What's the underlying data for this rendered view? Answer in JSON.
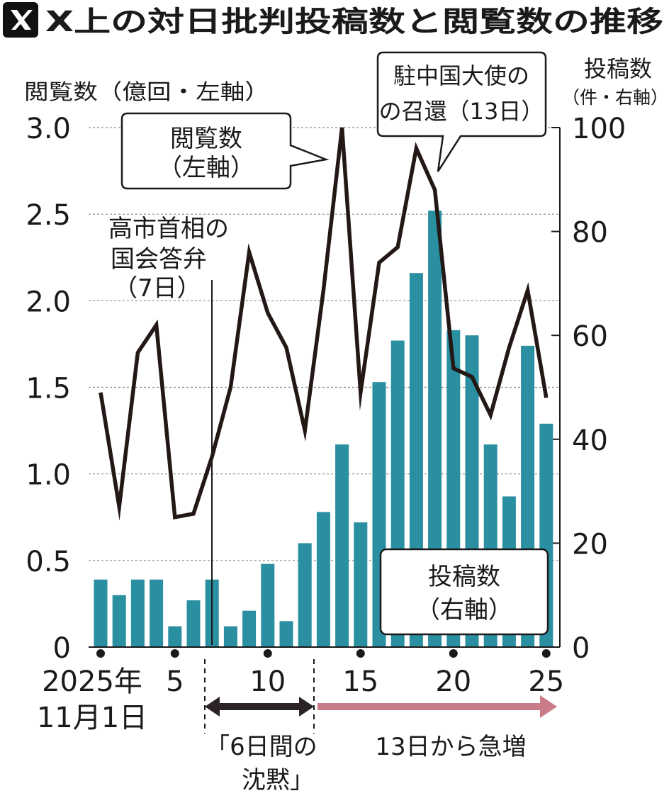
{
  "chart_data": {
    "type": "bar+line",
    "title": "X上の対日批判投稿数と閲覧数の推移",
    "title_icon": "x-logo-icon",
    "x": [
      1,
      2,
      3,
      4,
      5,
      6,
      7,
      8,
      9,
      10,
      11,
      12,
      13,
      14,
      15,
      16,
      17,
      18,
      19,
      20,
      21,
      22,
      23,
      24,
      25
    ],
    "x_tick_labels": [
      {
        "day": 1,
        "lines": [
          "2025年",
          "11月1日"
        ]
      },
      {
        "day": 5,
        "lines": [
          "5"
        ]
      },
      {
        "day": 10,
        "lines": [
          "10"
        ]
      },
      {
        "day": 15,
        "lines": [
          "15"
        ]
      },
      {
        "day": 20,
        "lines": [
          "20"
        ]
      },
      {
        "day": 25,
        "lines": [
          "25"
        ]
      }
    ],
    "left_axis": {
      "label": "閲覧数（億回・左軸）",
      "ylim": [
        0,
        3.0
      ],
      "ticks": [
        "0",
        "0.5",
        "1.0",
        "1.5",
        "2.0",
        "2.5",
        "3.0"
      ]
    },
    "right_axis": {
      "label_lines": [
        "投稿数",
        "（件・右軸）"
      ],
      "ylim": [
        0,
        100
      ],
      "ticks": [
        "0",
        "20",
        "40",
        "60",
        "80",
        "100"
      ]
    },
    "series": [
      {
        "name": "投稿数（右軸）",
        "kind": "bar",
        "axis": "right",
        "color": "#2a8fa0",
        "values": [
          13,
          10,
          13,
          13,
          4,
          9,
          13,
          4,
          7,
          16,
          5,
          20,
          26,
          39,
          24,
          51,
          59,
          72,
          84,
          61,
          60,
          39,
          29,
          58,
          43
        ]
      },
      {
        "name": "閲覧数（左軸）",
        "kind": "line",
        "axis": "left",
        "color": "#231816",
        "values": [
          1.47,
          0.81,
          1.7,
          1.86,
          0.75,
          0.77,
          1.1,
          1.5,
          2.28,
          1.93,
          1.73,
          1.25,
          2.06,
          3.0,
          1.47,
          2.22,
          2.31,
          2.88,
          2.64,
          1.61,
          1.56,
          1.34,
          1.73,
          2.06,
          1.44
        ]
      }
    ],
    "annotations": {
      "line_callout": [
        "閲覧数",
        "（左軸）"
      ],
      "bar_callout": [
        "投稿数",
        "（右軸）"
      ],
      "event_day7": [
        "高市首相の",
        "国会答弁",
        "（7日）"
      ],
      "event_day13": [
        "駐中国大使の",
        "の召還（13日）"
      ],
      "silence_period": [
        "「6日間の",
        "沈黙」"
      ],
      "surge_period": "13日から急増"
    },
    "colors": {
      "bar": "#2a8fa0",
      "line": "#231816",
      "grid": "#8a8a8a",
      "arrow_dark": "#2b2323",
      "arrow_pink": "#c97c87"
    }
  }
}
